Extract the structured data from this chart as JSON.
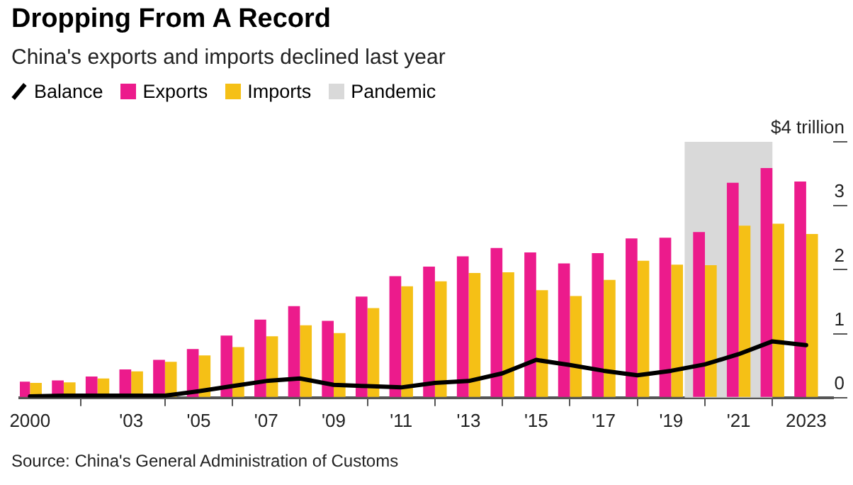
{
  "chart_data": {
    "type": "bar",
    "title": "Dropping From A Record",
    "subtitle": "China's exports and imports declined last year",
    "x": [
      2000,
      2001,
      2002,
      2003,
      2004,
      2005,
      2006,
      2007,
      2008,
      2009,
      2010,
      2011,
      2012,
      2013,
      2014,
      2015,
      2016,
      2017,
      2018,
      2019,
      2020,
      2021,
      2022,
      2023
    ],
    "series": [
      {
        "name": "Balance",
        "type": "line",
        "color": "#000000",
        "values": [
          0.02,
          0.03,
          0.03,
          0.03,
          0.03,
          0.1,
          0.18,
          0.26,
          0.3,
          0.2,
          0.18,
          0.16,
          0.23,
          0.26,
          0.38,
          0.59,
          0.51,
          0.42,
          0.35,
          0.42,
          0.52,
          0.68,
          0.88,
          0.82
        ]
      },
      {
        "name": "Exports",
        "color": "#ec1b8c",
        "values": [
          0.25,
          0.27,
          0.33,
          0.44,
          0.59,
          0.76,
          0.97,
          1.22,
          1.43,
          1.2,
          1.58,
          1.9,
          2.05,
          2.21,
          2.34,
          2.27,
          2.1,
          2.26,
          2.49,
          2.5,
          2.59,
          3.36,
          3.59,
          3.38
        ]
      },
      {
        "name": "Imports",
        "color": "#f5c016",
        "values": [
          0.23,
          0.24,
          0.3,
          0.41,
          0.56,
          0.66,
          0.79,
          0.96,
          1.13,
          1.01,
          1.4,
          1.74,
          1.82,
          1.95,
          1.96,
          1.68,
          1.59,
          1.84,
          2.14,
          2.08,
          2.07,
          2.69,
          2.72,
          2.56
        ]
      }
    ],
    "bands": [
      {
        "axis": "x",
        "from": 2019.4,
        "to": 2022.0,
        "label": "Pandemic",
        "color": "#d9d9d9"
      }
    ],
    "xlim": [
      1999.7,
      2023.8
    ],
    "xticks": [
      2000,
      {
        "value": 2003,
        "label": "'03"
      },
      {
        "value": 2005,
        "label": "'05"
      },
      {
        "value": 2007,
        "label": "'07"
      },
      {
        "value": 2009,
        "label": "'09"
      },
      {
        "value": 2011,
        "label": "'11"
      },
      {
        "value": 2013,
        "label": "'13"
      },
      {
        "value": 2015,
        "label": "'15"
      },
      {
        "value": 2017,
        "label": "'17"
      },
      {
        "value": 2019,
        "label": "'19"
      },
      {
        "value": 2021,
        "label": "'21"
      },
      2023
    ],
    "ylim": [
      0,
      4
    ],
    "yticks": [
      0,
      1,
      2,
      3,
      {
        "value": 4,
        "label": "$4 trillion"
      }
    ],
    "grid": false,
    "legend": "top left",
    "annotations": [
      "Source: China's General Administration of Customs"
    ]
  }
}
